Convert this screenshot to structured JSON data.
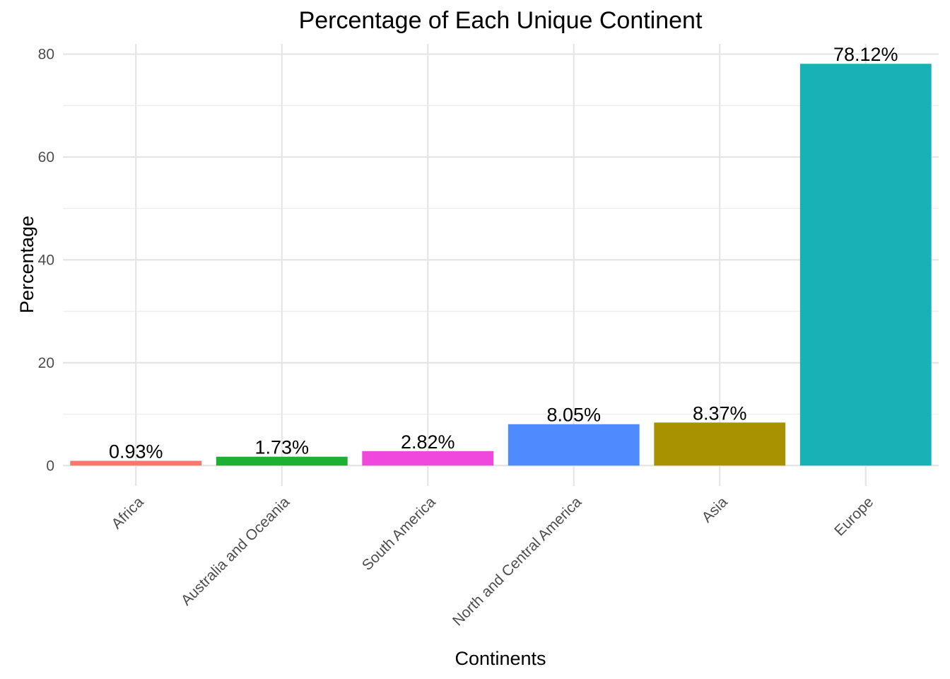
{
  "chart_data": {
    "type": "bar",
    "title": "Percentage of Each Unique Continent",
    "xlabel": "Continents",
    "ylabel": "Percentage",
    "categories": [
      "Africa",
      "Australia and Oceania",
      "South America",
      "North and Central America",
      "Asia",
      "Europe"
    ],
    "values": [
      0.93,
      1.73,
      2.82,
      8.05,
      8.37,
      78.12
    ],
    "value_labels": [
      "0.93%",
      "1.73%",
      "2.82%",
      "8.05%",
      "8.37%",
      "78.12%"
    ],
    "colors": [
      "#F8766D",
      "#1DB033",
      "#F047DC",
      "#4F8AFF",
      "#A89200",
      "#18B2B6"
    ],
    "ylim": [
      -1.2,
      82
    ],
    "yticks": [
      0,
      20,
      40,
      60,
      80
    ],
    "grid": true,
    "legend": "none"
  }
}
